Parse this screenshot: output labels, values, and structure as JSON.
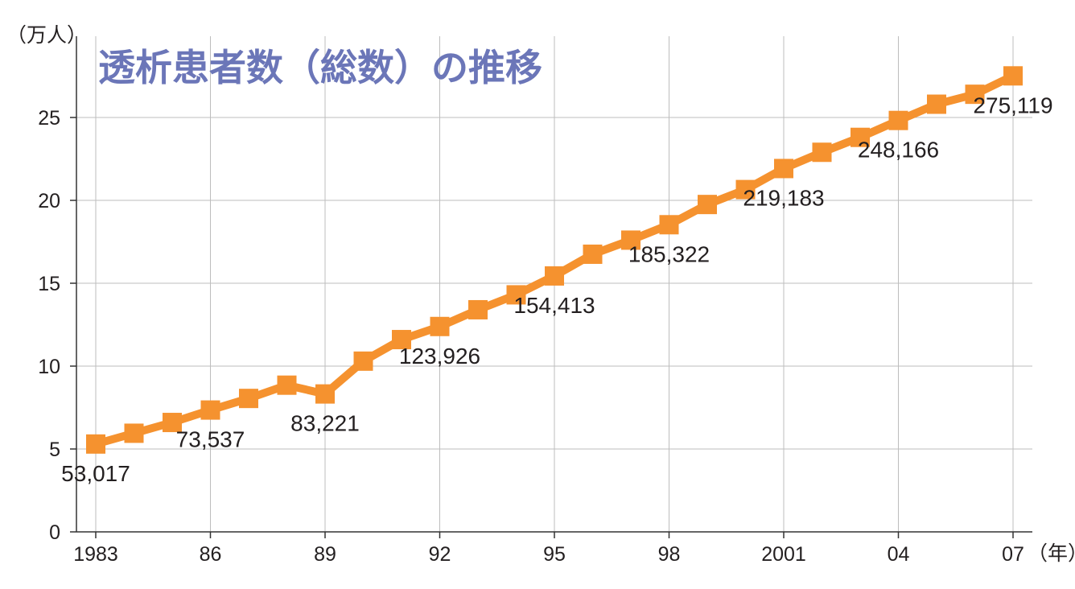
{
  "chart_data": {
    "type": "line",
    "title": "透析患者数（総数）の推移",
    "y_unit_label": "（万人）",
    "x_unit_label": "（年）",
    "ylim": [
      0,
      30
    ],
    "y_ticks": [
      0,
      5,
      10,
      15,
      20,
      25
    ],
    "x_tick_labels": [
      {
        "year": 1983,
        "label": "1983"
      },
      {
        "year": 1986,
        "label": "86"
      },
      {
        "year": 1989,
        "label": "89"
      },
      {
        "year": 1992,
        "label": "92"
      },
      {
        "year": 1995,
        "label": "95"
      },
      {
        "year": 1998,
        "label": "98"
      },
      {
        "year": 2001,
        "label": "2001"
      },
      {
        "year": 2004,
        "label": "04"
      },
      {
        "year": 2007,
        "label": "07"
      }
    ],
    "grid": "vertical lines at labeled years, horizontal lines at 5-unit ticks",
    "series": [
      {
        "color": "#F5922F",
        "x": [
          1983,
          1984,
          1985,
          1986,
          1987,
          1988,
          1989,
          1990,
          1991,
          1992,
          1993,
          1994,
          1995,
          1996,
          1997,
          1998,
          1999,
          2000,
          2001,
          2002,
          2003,
          2004,
          2005,
          2006,
          2007
        ],
        "y": [
          5.3,
          5.95,
          6.6,
          7.35,
          8.05,
          8.85,
          8.32,
          10.3,
          11.6,
          12.39,
          13.4,
          14.3,
          15.44,
          16.75,
          17.6,
          18.53,
          19.75,
          20.65,
          21.92,
          22.9,
          23.8,
          24.82,
          25.8,
          26.4,
          27.51
        ]
      }
    ],
    "data_labels": [
      {
        "year": 1983,
        "text": "53,017"
      },
      {
        "year": 1986,
        "text": "73,537"
      },
      {
        "year": 1989,
        "text": "83,221"
      },
      {
        "year": 1992,
        "text": "123,926"
      },
      {
        "year": 1995,
        "text": "154,413"
      },
      {
        "year": 1998,
        "text": "185,322"
      },
      {
        "year": 2001,
        "text": "219,183"
      },
      {
        "year": 2004,
        "text": "248,166"
      },
      {
        "year": 2007,
        "text": "275,119"
      }
    ]
  },
  "colors": {
    "line": "#F5922F",
    "title": "#6B76B8",
    "grid": "#BDBDBD",
    "axis": "#333333",
    "text": "#231F20"
  }
}
